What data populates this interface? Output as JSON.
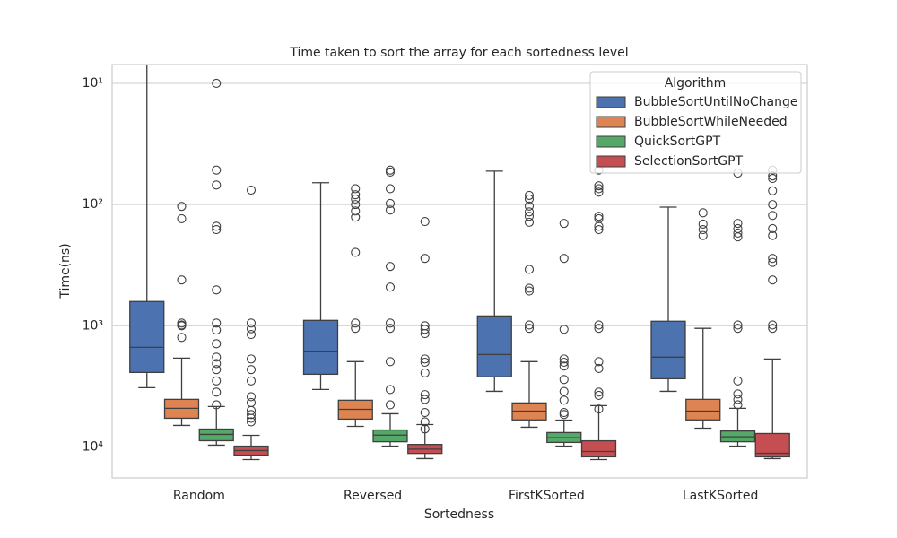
{
  "chart_data": {
    "type": "box",
    "title": "Time taken to sort the array for each sortedness level",
    "x_label": "Sortedness",
    "y_label": "Time(ns)",
    "categories": [
      "Random",
      "Reversed",
      "FirstKSorted",
      "LastKSorted"
    ],
    "ylim": [
      7,
      18000
    ],
    "y_inverted": true,
    "log_y": true,
    "grid": true,
    "yticks": [
      {
        "value": 10,
        "label": "10¹"
      },
      {
        "value": 100,
        "label": "10²"
      },
      {
        "value": 1000,
        "label": "10³"
      },
      {
        "value": 10000,
        "label": "10⁴"
      }
    ],
    "legend_title": "Algorithm",
    "legend_position": "upper right",
    "series": [
      {
        "name": "BubbleSortUntilNoChange",
        "color": "#4c72b0",
        "boxes": [
          {
            "min": 5,
            "q1": 631,
            "median": 1507,
            "q3": 2427,
            "max": 3243,
            "outliers": []
          },
          {
            "min": 66,
            "q1": 903,
            "median": 1641,
            "q3": 2512,
            "max": 3357,
            "outliers": []
          },
          {
            "min": 53,
            "q1": 830,
            "median": 1726,
            "q3": 2640,
            "max": 3475,
            "outliers": []
          },
          {
            "min": 105,
            "q1": 918,
            "median": 1815,
            "q3": 2735,
            "max": 3475,
            "outliers": []
          }
        ]
      },
      {
        "name": "BubbleSortWhileNeeded",
        "color": "#dd8452",
        "boxes": [
          {
            "min": 1849,
            "q1": 4046,
            "median": 4800,
            "q3": 5794,
            "max": 6637,
            "outliers": [
              103.5,
              131,
              419,
              950,
              985,
              1000,
              1248
            ]
          },
          {
            "min": 1977,
            "q1": 4114,
            "median": 4890,
            "q3": 5888,
            "max": 6760,
            "outliers": [
              74,
              83,
              90,
              100,
              113,
              127,
              248,
              950,
              1050
            ]
          },
          {
            "min": 1977,
            "q1": 4330,
            "median": 5060,
            "q3": 5980,
            "max": 6870,
            "outliers": [
              84,
              90,
              103,
              115,
              125,
              140,
              343,
              490,
              517,
              985,
              1050
            ]
          },
          {
            "min": 1050,
            "q1": 4046,
            "median": 5060,
            "q3": 5980,
            "max": 6990,
            "outliers": [
              117,
              145,
              161,
              180
            ]
          }
        ]
      },
      {
        "name": "QuickSortGPT",
        "color": "#55a868",
        "boxes": [
          {
            "min": 4640,
            "q1": 7113,
            "median": 7870,
            "q3": 8875,
            "max": 9660,
            "outliers": [
              10,
              52,
              69,
              151,
              161,
              506,
              950,
              1085,
              1406,
              1815,
              2050,
              2300,
              2850,
              3530,
              4490
            ]
          },
          {
            "min": 5320,
            "q1": 7240,
            "median": 7980,
            "q3": 9050,
            "max": 9840,
            "outliers": [
              52,
              54,
              74,
              98,
              111,
              324,
              480,
              950,
              1050,
              1977,
              3357,
              4490
            ]
          },
          {
            "min": 6000,
            "q1": 7600,
            "median": 8380,
            "q3": 9170,
            "max": 9840,
            "outliers": [
              143,
              278,
              1070,
              1880,
              2000,
              2150,
              2780,
              3480,
              4110,
              5200,
              5400
            ]
          },
          {
            "min": 4800,
            "q1": 7380,
            "median": 8240,
            "q3": 9050,
            "max": 9840,
            "outliers": [
              55,
              143,
              158,
              172,
              185,
              985,
              1050,
              2850,
              3650,
              4050,
              4490
            ]
          }
        ]
      },
      {
        "name": "SelectionSortGPT",
        "color": "#c44e52",
        "boxes": [
          {
            "min": 8010,
            "q1": 9840,
            "median": 10710,
            "q3": 11670,
            "max": 12700,
            "outliers": [
              76,
              950,
              1060,
              1180,
              1880,
              2300,
              2850,
              3850,
              4300,
              5000,
              5400,
              5800,
              6200
            ]
          },
          {
            "min": 6535,
            "q1": 9530,
            "median": 10410,
            "q3": 11300,
            "max": 12470,
            "outliers": [
              138,
              278,
              1000,
              1070,
              1160,
              1880,
              2000,
              2450,
              3700,
              4050,
              5200,
              6200,
              7100
            ]
          },
          {
            "min": 4560,
            "q1": 8890,
            "median": 10890,
            "q3": 12050,
            "max": 12700,
            "outliers": [
              52,
              70,
              74,
              79,
              125,
              131,
              151,
              161,
              985,
              1050,
              1977,
              2250,
              3530,
              3750,
              4860
            ]
          },
          {
            "min": 1880,
            "q1": 7740,
            "median": 11280,
            "q3": 12050,
            "max": 12470,
            "outliers": [
              52,
              58,
              61,
              77,
              100,
              123,
              158,
              180,
              278,
              300,
              419,
              985,
              1050
            ]
          }
        ]
      }
    ]
  }
}
